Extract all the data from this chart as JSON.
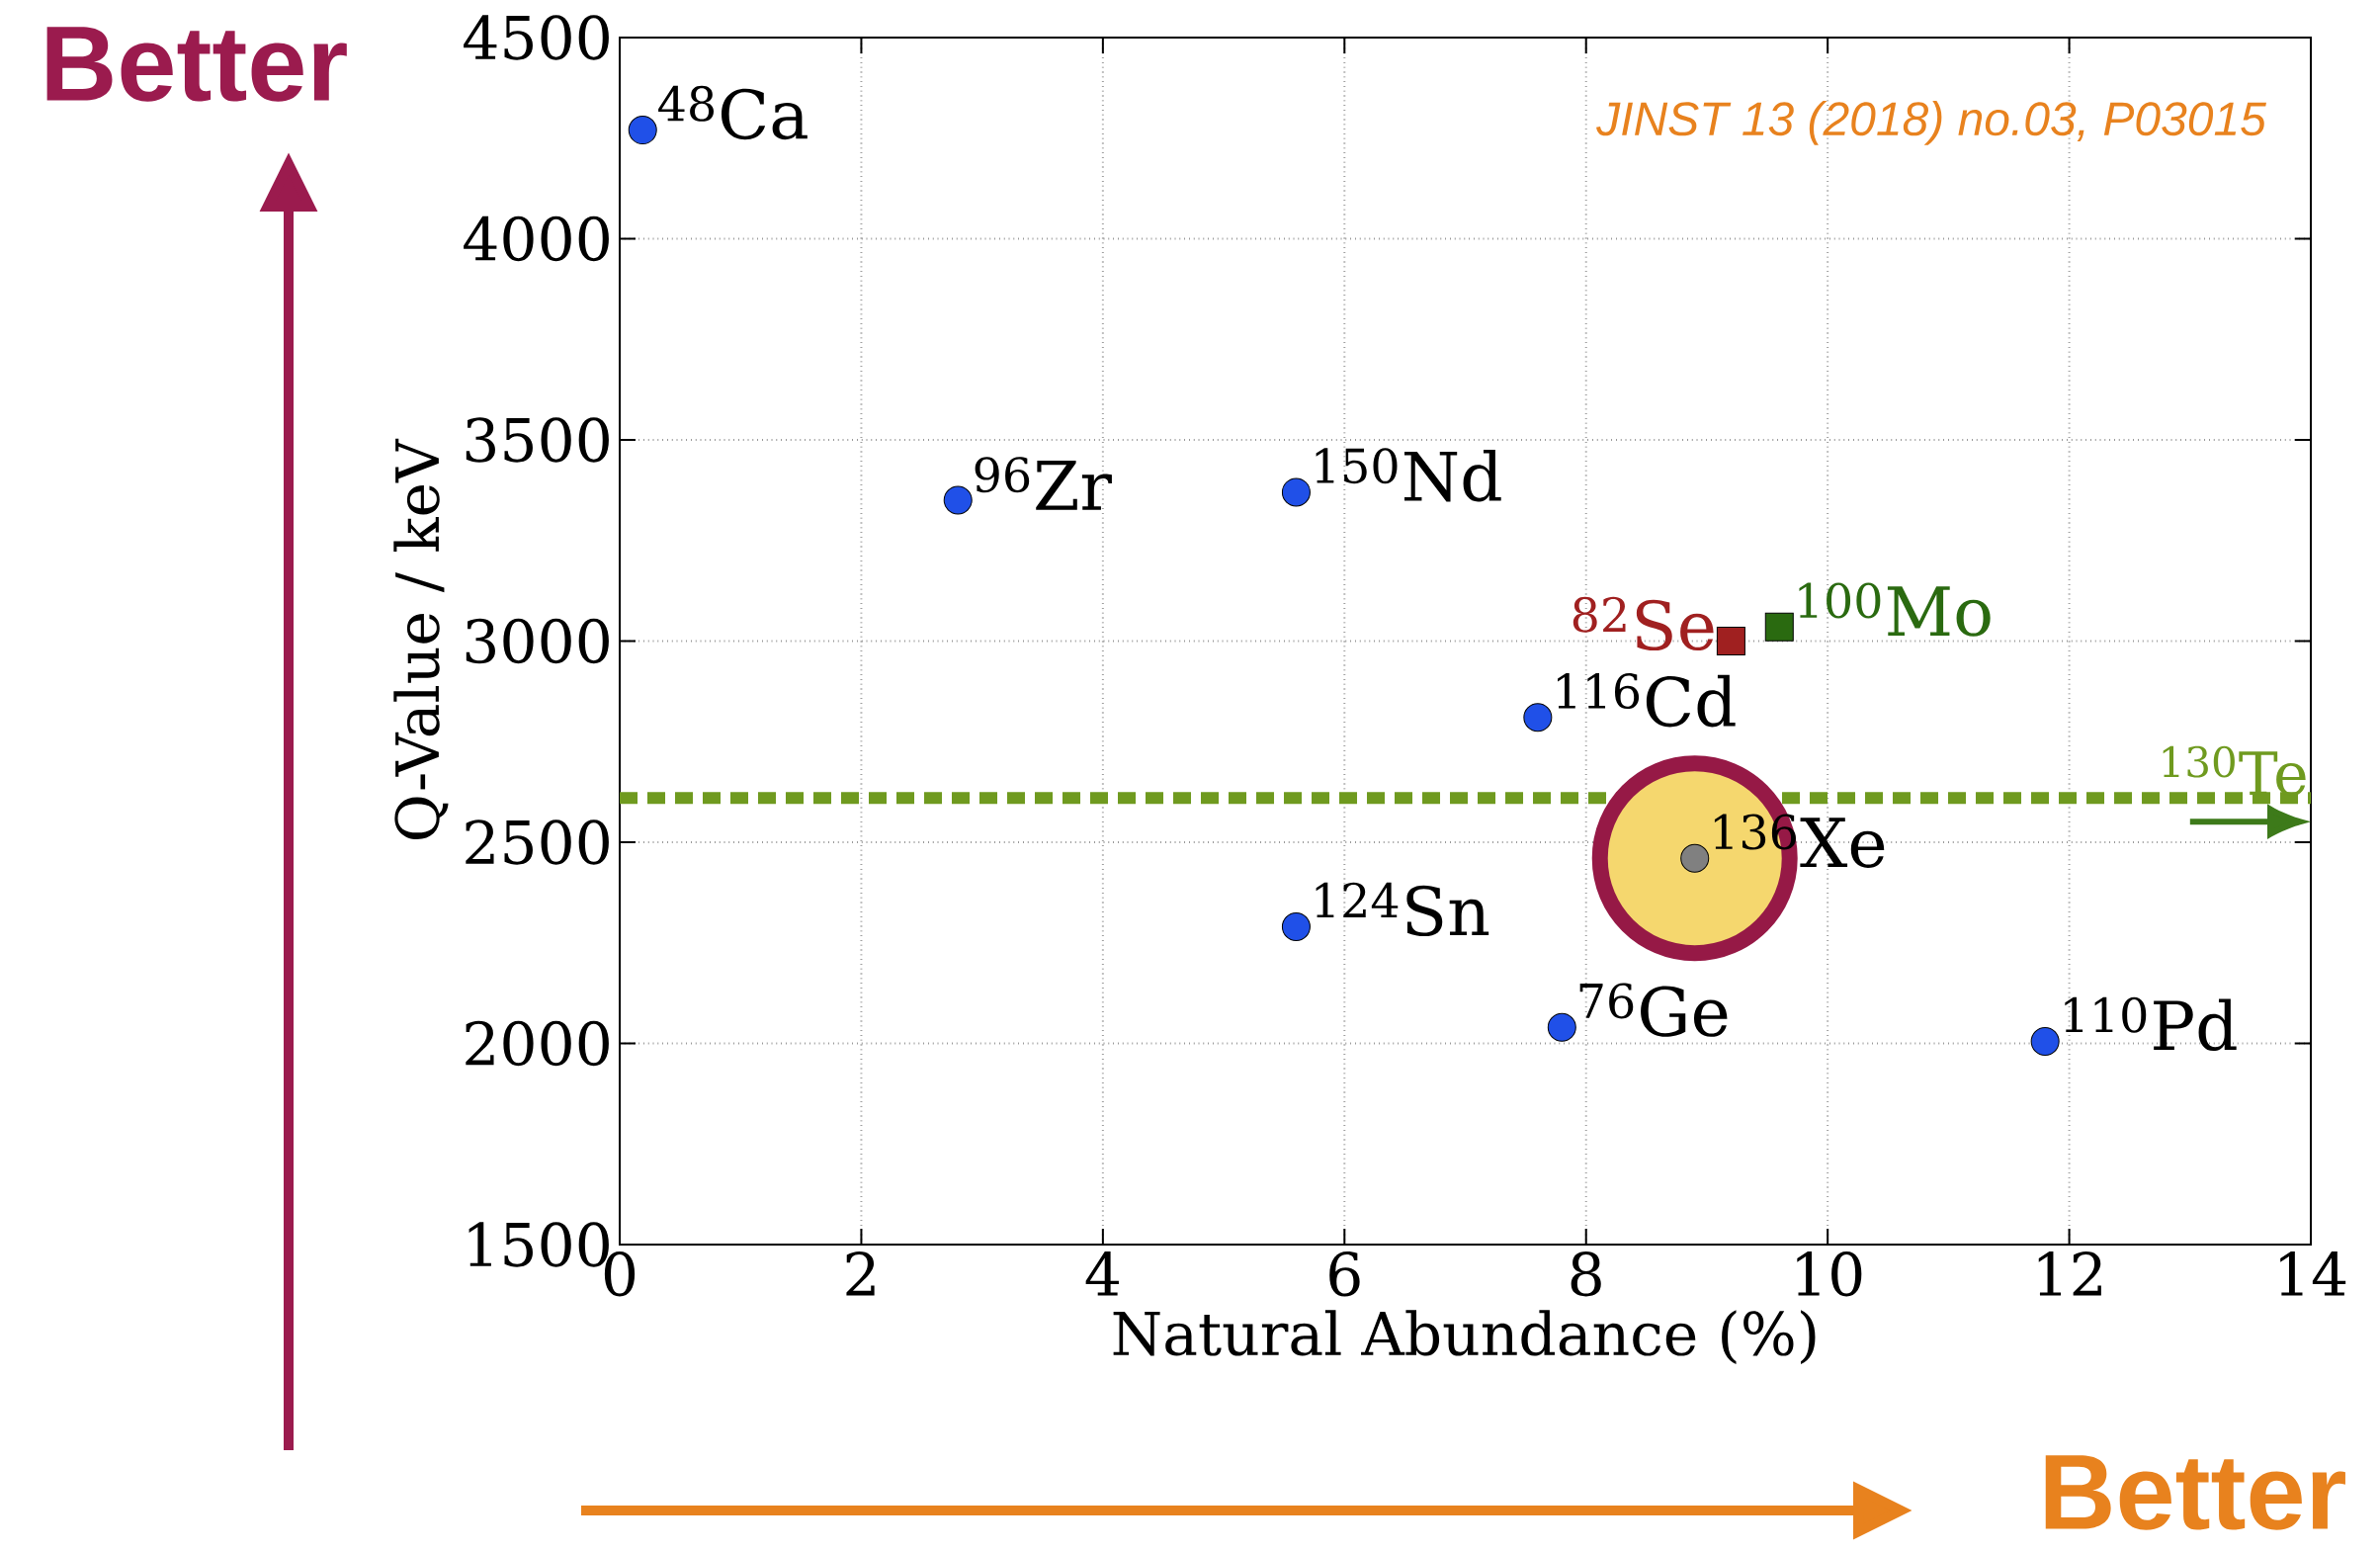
{
  "chart_data": {
    "type": "scatter",
    "xlabel": "Natural Abundance (%)",
    "ylabel": "Q-Value / keV",
    "xlim": [
      0,
      14
    ],
    "xticks": [
      0,
      2,
      4,
      6,
      8,
      10,
      12,
      14
    ],
    "ylim": [
      1500,
      4500
    ],
    "yticks": [
      1500,
      2000,
      2500,
      3000,
      3500,
      4000,
      4500
    ],
    "grid": true,
    "series": [
      {
        "color": "#2050e8",
        "marker": "circle",
        "x": [
          0.19,
          2.8,
          5.6,
          7.6,
          5.6,
          7.8,
          11.8
        ],
        "values": [
          4270,
          3350,
          3370,
          2810,
          2290,
          2040,
          2005
        ]
      },
      {
        "color": "#808080",
        "marker": "circle",
        "x": [
          8.9
        ],
        "values": [
          2460
        ]
      },
      {
        "color": "#a02020",
        "marker": "square",
        "x": [
          9.2
        ],
        "values": [
          3000
        ]
      },
      {
        "color": "#2a6a10",
        "marker": "square",
        "x": [
          9.6
        ],
        "values": [
          3035
        ]
      }
    ],
    "ref_lines": [
      {
        "axis": "y",
        "value": 2610,
        "label": "$^{130}$Te",
        "color": "#6f9a1f",
        "line_style": "dotted"
      }
    ],
    "annotations": [
      {
        "text": "$^{48}$Ca",
        "x": 0.19,
        "y": 4270
      },
      {
        "text": "$^{96}$Zr",
        "x": 2.8,
        "y": 3350
      },
      {
        "text": "$^{150}$Nd",
        "x": 5.6,
        "y": 3370
      },
      {
        "text": "$^{116}$Cd",
        "x": 7.6,
        "y": 2810
      },
      {
        "text": "$^{124}$Sn",
        "x": 5.6,
        "y": 2290
      },
      {
        "text": "$^{76}$Ge",
        "x": 7.8,
        "y": 2040
      },
      {
        "text": "$^{110}$Pd",
        "x": 11.8,
        "y": 2005
      },
      {
        "text": "$^{136}$Xe",
        "x": 8.9,
        "y": 2460
      },
      {
        "text": "$^{82}$Se",
        "x": 9.2,
        "y": 3000
      },
      {
        "text": "$^{100}$Mo",
        "x": 9.6,
        "y": 3035
      },
      "JINST 13 (2018) no.03, P03015",
      "Better",
      "Better"
    ]
  }
}
